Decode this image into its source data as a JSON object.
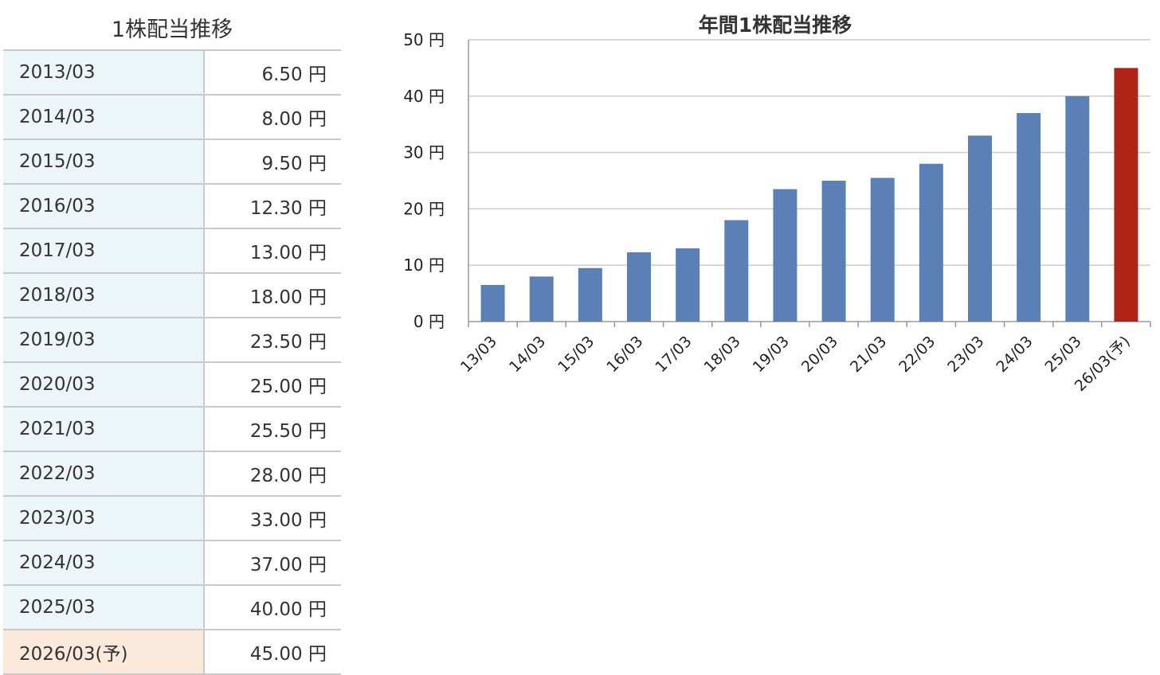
{
  "table": {
    "title": "1株配当推移",
    "rows": [
      {
        "year": "2013/03",
        "value": "6.50 円"
      },
      {
        "year": "2014/03",
        "value": "8.00 円"
      },
      {
        "year": "2015/03",
        "value": "9.50 円"
      },
      {
        "year": "2016/03",
        "value": "12.30 円"
      },
      {
        "year": "2017/03",
        "value": "13.00 円"
      },
      {
        "year": "2018/03",
        "value": "18.00 円"
      },
      {
        "year": "2019/03",
        "value": "23.50 円"
      },
      {
        "year": "2020/03",
        "value": "25.00 円"
      },
      {
        "year": "2021/03",
        "value": "25.50 円"
      },
      {
        "year": "2022/03",
        "value": "28.00 円"
      },
      {
        "year": "2023/03",
        "value": "33.00 円"
      },
      {
        "year": "2024/03",
        "value": "37.00 円"
      },
      {
        "year": "2025/03",
        "value": "40.00 円"
      },
      {
        "year": "2026/03(予)",
        "value": "45.00 円",
        "forecast": true
      }
    ],
    "colors": {
      "year_bg": "#ecf5f8",
      "forecast_bg": "#fbeadc",
      "border": "#c9c9c9"
    }
  },
  "chart_data": {
    "type": "bar",
    "title": "年間1株配当推移",
    "categories": [
      "13/03",
      "14/03",
      "15/03",
      "16/03",
      "17/03",
      "18/03",
      "19/03",
      "20/03",
      "21/03",
      "22/03",
      "23/03",
      "24/03",
      "25/03",
      "26/03(予)"
    ],
    "values": [
      6.5,
      8.0,
      9.5,
      12.3,
      13.0,
      18.0,
      23.5,
      25.0,
      25.5,
      28.0,
      33.0,
      37.0,
      40.0,
      45.0
    ],
    "forecast_index": 13,
    "ylim": [
      0,
      50
    ],
    "yticks": [
      0,
      10,
      20,
      30,
      40,
      50
    ],
    "ytick_labels": [
      "0 円",
      "10 円",
      "20 円",
      "30 円",
      "40 円",
      "50 円"
    ],
    "grid": true,
    "colors": {
      "bar": "#5b80b6",
      "forecast_bar": "#b02418",
      "grid": "#cccccc",
      "axis": "#999999"
    }
  }
}
